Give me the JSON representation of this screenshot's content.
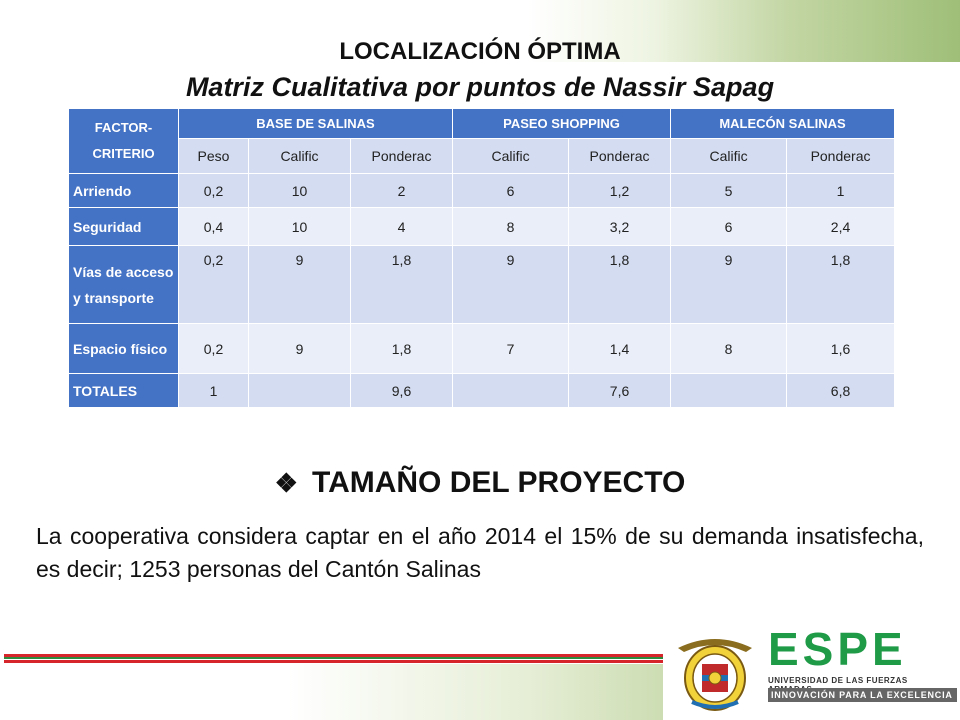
{
  "title": "LOCALIZACIÓN ÓPTIMA",
  "subtitle": "Matriz Cualitativa por puntos de Nassir Sapag",
  "table": {
    "factor_header": "FACTOR-CRITERIO",
    "groups": [
      "BASE DE SALINAS",
      "PASEO SHOPPING",
      "MALECÓN SALINAS"
    ],
    "subheaders": [
      "Peso",
      "Calific",
      "Ponderac",
      "Calific",
      "Ponderac",
      "Calific",
      "Ponderac"
    ],
    "rows": [
      {
        "factor": "Arriendo",
        "cells": [
          "0,2",
          "10",
          "2",
          "6",
          "1,2",
          "5",
          "1"
        ]
      },
      {
        "factor": "Seguridad",
        "cells": [
          "0,4",
          "10",
          "4",
          "8",
          "3,2",
          "6",
          "2,4"
        ]
      },
      {
        "factor": "Vías de acceso y transporte",
        "cells": [
          "0,2",
          "9",
          "1,8",
          "9",
          "1,8",
          "9",
          "1,8"
        ]
      },
      {
        "factor": "Espacio físico",
        "cells": [
          "0,2",
          "9",
          "1,8",
          "7",
          "1,4",
          "8",
          "1,6"
        ]
      },
      {
        "factor": "TOTALES",
        "cells": [
          "1",
          "",
          "9,6",
          "",
          "7,6",
          "",
          "6,8"
        ]
      }
    ]
  },
  "section_heading": "TAMAÑO DEL PROYECTO",
  "section_bullet": "❖",
  "paragraph": "La cooperativa considera captar en el año 2014 el 15% de su demanda insatisfecha, es decir; 1253 personas del Cantón Salinas",
  "logo": {
    "name": "ESPE",
    "university": "UNIVERSIDAD DE LAS FUERZAS ARMADAS",
    "tagline": "INNOVACIÓN PARA LA EXCELENCIA"
  },
  "colors": {
    "header_blue": "#4472c4",
    "cell_blue": "#d3dcf0",
    "espe_green": "#1f9a47",
    "stripe_red": "#d7262b"
  }
}
